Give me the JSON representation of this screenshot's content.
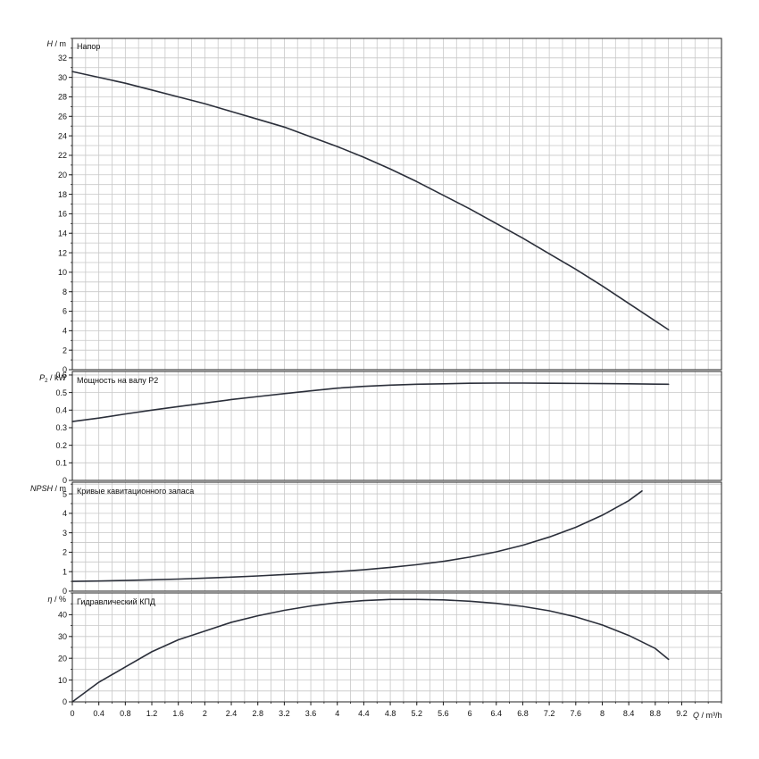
{
  "colors": {
    "grid": "#c8c8c8",
    "frame": "#222222",
    "curve": "#2b2f3a",
    "background": "#ffffff"
  },
  "chart_data": [
    {
      "type": "line",
      "title": "Напор",
      "ylabel_sym": "H",
      "ylabel_unit": " / m",
      "ylim": [
        0,
        34
      ],
      "ygrid_step": 1,
      "ytick_step": 2,
      "yticks": [
        "0",
        "2",
        "4",
        "6",
        "8",
        "10",
        "12",
        "14",
        "16",
        "18",
        "20",
        "22",
        "24",
        "26",
        "28",
        "30",
        "32"
      ],
      "grid": true,
      "series": [
        {
          "x": [
            0,
            0.4,
            0.8,
            1.2,
            1.6,
            2.0,
            2.4,
            2.8,
            3.2,
            3.6,
            4.0,
            4.4,
            4.8,
            5.2,
            5.6,
            6.0,
            6.4,
            6.8,
            7.2,
            7.6,
            8.0,
            8.4,
            8.8,
            9.0
          ],
          "y": [
            30.6,
            30.0,
            29.4,
            28.7,
            28.0,
            27.3,
            26.5,
            25.7,
            24.9,
            23.9,
            22.9,
            21.8,
            20.6,
            19.3,
            17.9,
            16.5,
            15.0,
            13.5,
            11.9,
            10.3,
            8.6,
            6.8,
            5.0,
            4.1
          ]
        }
      ]
    },
    {
      "type": "line",
      "title": "Мощность на валу P2",
      "ylabel_sym": "P",
      "ylabel_sub": "2",
      "ylabel_unit": " / kW",
      "ylim": [
        0,
        0.62
      ],
      "ygrid_step": 0.1,
      "ytick_step": 0.1,
      "yticks": [
        "0",
        "0.1",
        "0.2",
        "0.3",
        "0.4",
        "0.5",
        "0.6"
      ],
      "grid": true,
      "series": [
        {
          "x": [
            0,
            0.4,
            0.8,
            1.2,
            1.6,
            2.0,
            2.4,
            2.8,
            3.2,
            3.6,
            4.0,
            4.4,
            4.8,
            5.2,
            5.6,
            6.0,
            6.4,
            6.8,
            7.2,
            7.6,
            8.0,
            8.4,
            8.8,
            9.0
          ],
          "y": [
            0.335,
            0.355,
            0.378,
            0.4,
            0.42,
            0.44,
            0.46,
            0.477,
            0.494,
            0.51,
            0.525,
            0.535,
            0.542,
            0.547,
            0.55,
            0.553,
            0.554,
            0.554,
            0.553,
            0.552,
            0.551,
            0.55,
            0.548,
            0.547
          ]
        }
      ]
    },
    {
      "type": "line",
      "title": "Кривые кавитационного запаса",
      "ylabel_sym": "NPSH",
      "ylabel_unit": " / m",
      "ylim": [
        0,
        5.6
      ],
      "ygrid_step": 0.5,
      "ytick_step": 1,
      "yticks": [
        "0",
        "1",
        "2",
        "3",
        "4",
        "5"
      ],
      "grid": true,
      "series": [
        {
          "x": [
            0,
            0.4,
            0.8,
            1.2,
            1.6,
            2.0,
            2.4,
            2.8,
            3.2,
            3.6,
            4.0,
            4.4,
            4.8,
            5.2,
            5.6,
            6.0,
            6.4,
            6.8,
            7.2,
            7.6,
            8.0,
            8.4,
            8.6
          ],
          "y": [
            0.5,
            0.52,
            0.55,
            0.58,
            0.62,
            0.67,
            0.72,
            0.78,
            0.85,
            0.92,
            1.0,
            1.1,
            1.22,
            1.36,
            1.53,
            1.75,
            2.02,
            2.36,
            2.78,
            3.28,
            3.9,
            4.65,
            5.15
          ]
        }
      ]
    },
    {
      "type": "line",
      "title": "Гидравлический КПД",
      "ylabel_sym": "η",
      "ylabel_unit": " / %",
      "ylim": [
        0,
        50
      ],
      "ygrid_step": 5,
      "ytick_step": 10,
      "yticks": [
        "0",
        "10",
        "20",
        "30",
        "40"
      ],
      "grid": true,
      "xlabel_sym": "Q",
      "xlabel_unit": " / m³/h",
      "xlim": [
        0,
        9.8
      ],
      "xgrid_step": 0.2,
      "xticks": [
        "0",
        "0.4",
        "0.8",
        "1.2",
        "1.6",
        "2",
        "2.4",
        "2.8",
        "3.2",
        "3.6",
        "4",
        "4.4",
        "4.8",
        "5.2",
        "5.6",
        "6",
        "6.4",
        "6.8",
        "7.2",
        "7.6",
        "8",
        "8.4",
        "8.8",
        "9.2"
      ],
      "series": [
        {
          "x": [
            0,
            0.4,
            0.8,
            1.2,
            1.6,
            2.0,
            2.4,
            2.8,
            3.2,
            3.6,
            4.0,
            4.4,
            4.8,
            5.2,
            5.6,
            6.0,
            6.4,
            6.8,
            7.2,
            7.6,
            8.0,
            8.4,
            8.8,
            9.0
          ],
          "y": [
            0,
            9,
            16,
            23,
            28.5,
            32.5,
            36.5,
            39.5,
            42,
            44,
            45.5,
            46.5,
            47,
            47,
            46.8,
            46.2,
            45.2,
            43.8,
            41.8,
            39,
            35.3,
            30.5,
            24.5,
            19.5
          ]
        }
      ]
    }
  ]
}
